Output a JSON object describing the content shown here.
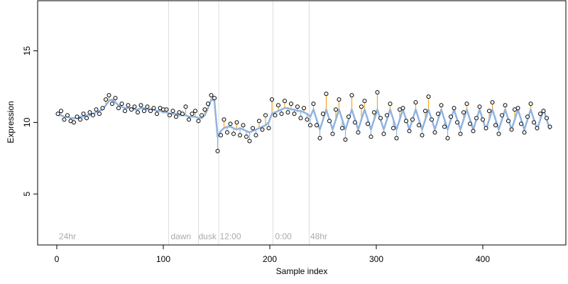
{
  "chart_data": {
    "type": "scatter",
    "xlabel": "Sample index",
    "ylabel": "Expression",
    "xlim": [
      -18,
      478
    ],
    "ylim": [
      1.44,
      18.5
    ],
    "xticks": [
      0,
      100,
      200,
      300,
      400
    ],
    "yticks": [
      5,
      10,
      15
    ],
    "vlines": [
      105,
      133,
      152,
      203,
      237
    ],
    "vline_color": "#dddddd",
    "annotations": [
      {
        "x": 2,
        "y": 2.0,
        "label": "24hr"
      },
      {
        "x": 107,
        "y": 2.0,
        "label": "dawn"
      },
      {
        "x": 133,
        "y": 2.0,
        "label": "dusk"
      },
      {
        "x": 153,
        "y": 2.0,
        "label": "12:00"
      },
      {
        "x": 205,
        "y": 2.0,
        "label": "0:00"
      },
      {
        "x": 238,
        "y": 2.0,
        "label": "48hr"
      }
    ],
    "residual_colors": {
      "above": "#f5a623",
      "below": "#8fb3e0"
    },
    "x": [
      1,
      4,
      7,
      10,
      13,
      16,
      19,
      22,
      25,
      28,
      31,
      34,
      37,
      40,
      43,
      46,
      49,
      52,
      55,
      58,
      61,
      64,
      67,
      70,
      73,
      76,
      79,
      82,
      85,
      88,
      91,
      94,
      97,
      100,
      103,
      106,
      109,
      112,
      115,
      118,
      121,
      124,
      127,
      130,
      133,
      136,
      139,
      142,
      145,
      148,
      151,
      154,
      157,
      160,
      163,
      166,
      169,
      172,
      175,
      178,
      181,
      184,
      187,
      190,
      193,
      196,
      199,
      202,
      205,
      208,
      211,
      214,
      217,
      220,
      223,
      226,
      229,
      232,
      235,
      238,
      241,
      244,
      247,
      250,
      253,
      256,
      259,
      262,
      265,
      268,
      271,
      274,
      277,
      280,
      283,
      286,
      289,
      292,
      295,
      298,
      301,
      304,
      307,
      310,
      313,
      316,
      319,
      322,
      325,
      328,
      331,
      334,
      337,
      340,
      343,
      346,
      349,
      352,
      355,
      358,
      361,
      364,
      367,
      370,
      373,
      376,
      379,
      382,
      385,
      388,
      391,
      394,
      397,
      400,
      403,
      406,
      409,
      412,
      415,
      418,
      421,
      424,
      427,
      430,
      433,
      436,
      439,
      442,
      445,
      448,
      451,
      454,
      457,
      460,
      463
    ],
    "series": [
      {
        "role": "points",
        "color": "#000000",
        "values": [
          10.6,
          10.8,
          10.2,
          10.5,
          10.1,
          10.0,
          10.4,
          10.2,
          10.6,
          10.3,
          10.7,
          10.5,
          10.9,
          10.6,
          11.0,
          11.6,
          11.9,
          11.3,
          11.7,
          11.0,
          11.3,
          10.8,
          11.2,
          10.9,
          11.1,
          10.7,
          11.2,
          10.8,
          11.1,
          10.8,
          11.0,
          10.6,
          11.0,
          10.9,
          10.9,
          10.5,
          10.8,
          10.4,
          10.7,
          10.6,
          11.1,
          10.2,
          10.6,
          10.8,
          10.1,
          10.5,
          10.9,
          11.3,
          11.9,
          11.7,
          8.0,
          9.1,
          10.2,
          9.3,
          9.9,
          9.2,
          10.0,
          9.1,
          9.8,
          9.0,
          8.7,
          9.6,
          9.1,
          10.1,
          9.5,
          10.5,
          9.6,
          11.6,
          10.5,
          11.2,
          10.6,
          11.5,
          10.7,
          11.3,
          10.6,
          11.1,
          10.3,
          11.0,
          10.2,
          9.8,
          11.3,
          9.8,
          8.9,
          10.6,
          12.0,
          10.1,
          9.2,
          10.9,
          11.6,
          9.6,
          8.8,
          10.4,
          11.9,
          10.0,
          9.3,
          11.1,
          11.5,
          9.9,
          9.0,
          10.7,
          12.1,
          10.3,
          9.2,
          10.5,
          11.3,
          9.6,
          8.9,
          10.9,
          11.0,
          10.1,
          9.4,
          10.2,
          11.4,
          9.8,
          9.1,
          10.8,
          11.8,
          10.2,
          9.3,
          10.6,
          11.2,
          9.7,
          8.9,
          10.4,
          11.0,
          10.0,
          9.2,
          10.7,
          11.3,
          9.9,
          9.4,
          10.3,
          11.1,
          10.2,
          9.6,
          10.8,
          11.4,
          9.8,
          9.2,
          10.5,
          11.2,
          10.1,
          9.5,
          10.9,
          11.0,
          9.9,
          9.3,
          10.4,
          11.3,
          10.0,
          9.6,
          10.6,
          10.8,
          10.3,
          9.7
        ]
      },
      {
        "role": "line",
        "color": "#8fb3e0",
        "values": [
          10.5,
          10.5,
          10.4,
          10.4,
          10.3,
          10.3,
          10.3,
          10.4,
          10.4,
          10.5,
          10.5,
          10.6,
          10.7,
          10.8,
          10.9,
          11.2,
          11.5,
          11.6,
          11.4,
          11.2,
          11.1,
          11.0,
          11.0,
          11.0,
          10.9,
          10.9,
          11.0,
          11.0,
          10.9,
          10.9,
          10.9,
          10.8,
          10.8,
          10.7,
          10.7,
          10.6,
          10.6,
          10.6,
          10.5,
          10.5,
          10.5,
          10.4,
          10.4,
          10.4,
          10.3,
          10.3,
          10.5,
          11.0,
          11.6,
          11.5,
          9.0,
          9.4,
          9.6,
          9.7,
          9.7,
          9.6,
          9.5,
          9.6,
          9.5,
          9.4,
          9.3,
          9.4,
          9.5,
          9.6,
          9.7,
          9.8,
          10.0,
          10.6,
          10.7,
          10.8,
          10.9,
          11.0,
          11.0,
          10.9,
          10.9,
          10.8,
          10.8,
          10.7,
          10.6,
          10.4,
          10.9,
          10.2,
          9.5,
          10.2,
          10.9,
          10.2,
          9.5,
          10.2,
          10.9,
          10.2,
          9.5,
          10.2,
          10.9,
          10.2,
          9.5,
          10.2,
          10.9,
          10.2,
          9.5,
          10.2,
          10.9,
          10.2,
          9.5,
          10.2,
          10.9,
          10.2,
          9.5,
          10.2,
          10.9,
          10.2,
          9.5,
          10.2,
          10.9,
          10.2,
          9.5,
          10.2,
          10.9,
          10.2,
          9.5,
          10.2,
          10.9,
          10.2,
          9.5,
          10.2,
          10.9,
          10.2,
          9.5,
          10.2,
          10.9,
          10.2,
          9.5,
          10.2,
          10.9,
          10.2,
          9.5,
          10.2,
          10.9,
          10.2,
          9.5,
          10.2,
          10.9,
          10.2,
          9.5,
          10.2,
          10.9,
          10.2,
          9.5,
          10.2,
          10.9,
          10.2,
          9.5,
          10.2,
          10.9,
          10.2,
          9.5
        ]
      }
    ]
  }
}
